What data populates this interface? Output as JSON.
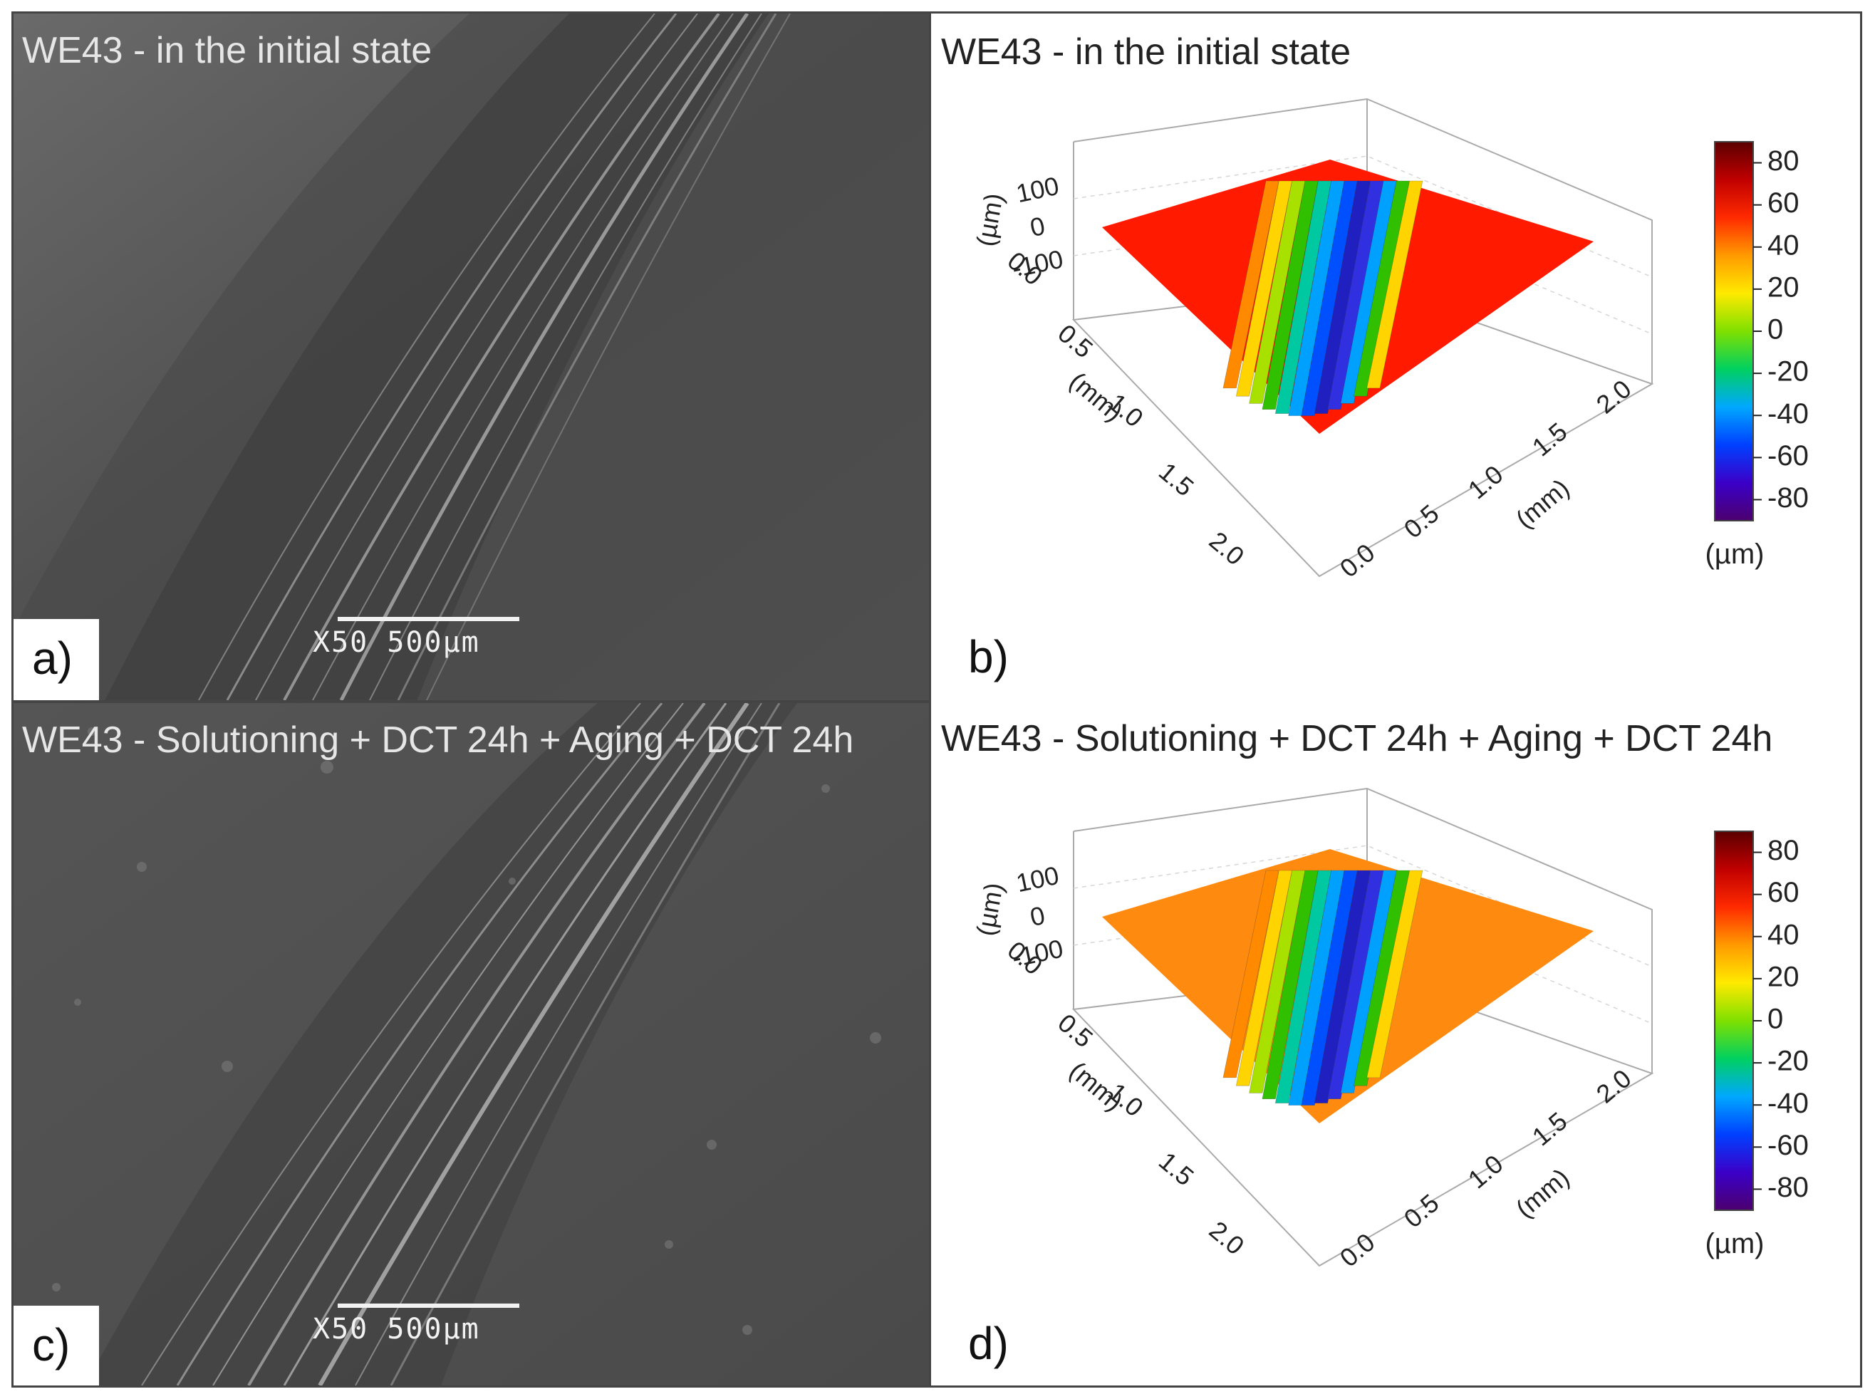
{
  "panels": {
    "a": {
      "label": "a)",
      "title": "WE43 - in the initial state",
      "scale_bar_text": "X50 500µm"
    },
    "b": {
      "label": "b)",
      "title": "WE43 - in the initial state",
      "surface_color": "#ff1a00"
    },
    "c": {
      "label": "c)",
      "title": "WE43 - Solutioning + DCT 24h + Aging + DCT 24h",
      "scale_bar_text": "X50 500µm"
    },
    "d": {
      "label": "d)",
      "title": "WE43 - Solutioning + DCT 24h + Aging + DCT 24h",
      "surface_color": "#ff8a10"
    }
  },
  "plot_axes": {
    "z_ticks": [
      "100",
      "0",
      "-100"
    ],
    "z_label": "(µm)",
    "x_ticks": [
      "0.0",
      "0.5",
      "1.0",
      "1.5",
      "2.0"
    ],
    "x_label": "(mm)",
    "y_ticks": [
      "0.0",
      "0.5",
      "1.0",
      "1.5",
      "2.0"
    ],
    "y_label": "(mm)"
  },
  "colorbar": {
    "ticks": [
      "80",
      "60",
      "40",
      "20",
      "0",
      "-20",
      "-40",
      "-60",
      "-80"
    ],
    "unit": "(µm)",
    "range": [
      -90,
      90
    ]
  },
  "groove_colors": [
    "#ff8a00",
    "#ffd400",
    "#a8e000",
    "#30c000",
    "#00c8a0",
    "#00a0ff",
    "#0050ff",
    "#2020c0",
    "#3030e0",
    "#00a0ff",
    "#30c000",
    "#ffd400"
  ],
  "colorbar_gradient": [
    "#4b006e",
    "#3b00c8",
    "#0040ff",
    "#00a8ff",
    "#00d060",
    "#7fe000",
    "#ffea00",
    "#ff9a00",
    "#ff2a00",
    "#c00000",
    "#5a0000"
  ]
}
